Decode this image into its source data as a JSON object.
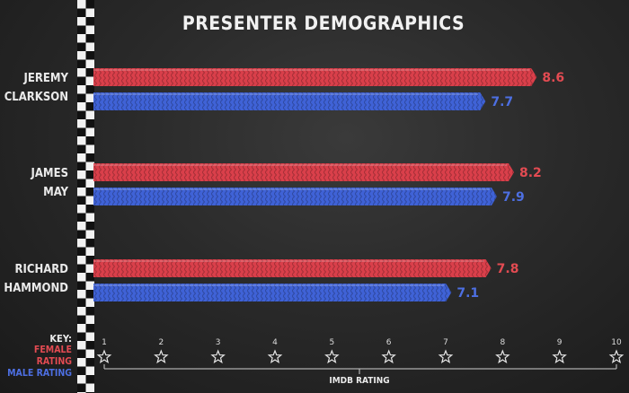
{
  "chart_data": {
    "type": "bar",
    "orientation": "horizontal",
    "title": "PRESENTER DEMOGRAPHICS",
    "xlabel": "IMDB RATING",
    "xlim": [
      0,
      10
    ],
    "ticks": [
      "1",
      "2",
      "3",
      "4",
      "5",
      "6",
      "7",
      "8",
      "9",
      "10"
    ],
    "categories": [
      [
        "JEREMY",
        "CLARKSON"
      ],
      [
        "JAMES",
        "MAY"
      ],
      [
        "RICHARD",
        "HAMMOND"
      ]
    ],
    "series": [
      {
        "name": "FEMALE RATING",
        "color": "#d93f4a",
        "text_color": "#e34b52",
        "values": [
          8.6,
          8.2,
          7.8
        ]
      },
      {
        "name": "MALE RATING",
        "color": "#3f62d6",
        "text_color": "#4d6fe2",
        "values": [
          7.7,
          7.9,
          7.1
        ]
      }
    ],
    "value_labels": [
      [
        "8.6",
        "8.2",
        "7.8"
      ],
      [
        "7.7",
        "7.9",
        "7.1"
      ]
    ],
    "tick_marker": "star-icon",
    "key_title": "KEY:",
    "background": "#2a2a2a"
  }
}
